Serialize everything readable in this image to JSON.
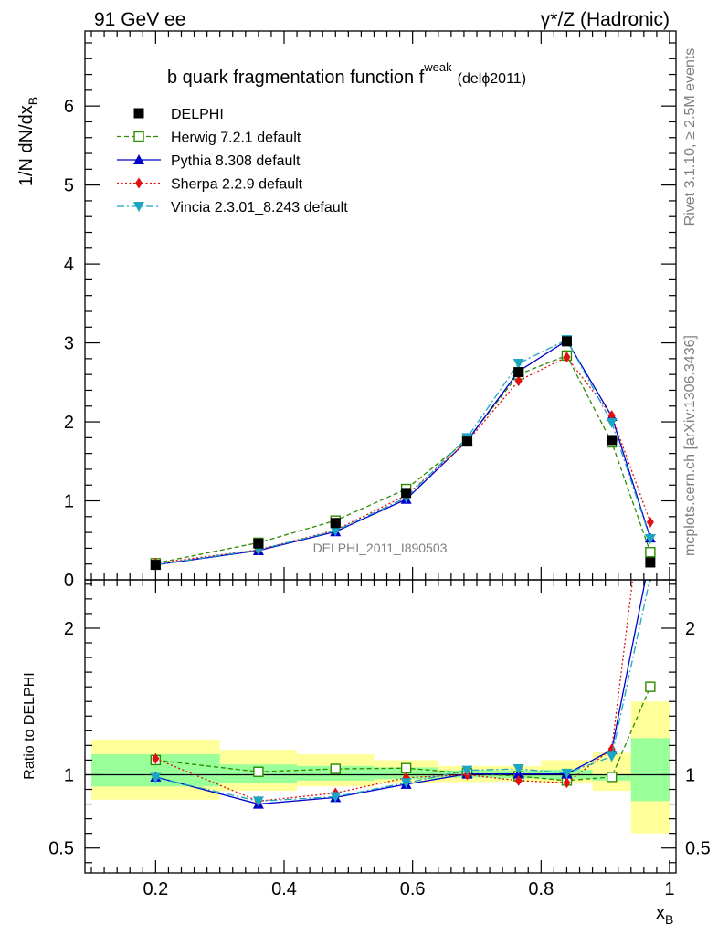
{
  "header": {
    "left": "91 GeV ee",
    "right": "γ*/Z (Hadronic)"
  },
  "side_labels": {
    "rivet": "Rivet 3.1.10, ≥ 2.5M events",
    "mcplots": "mcplots.cern.ch [arXiv:1306.3436]"
  },
  "chart_data": [
    {
      "type": "line",
      "title_main": "b quark fragmentation function f",
      "title_sup": "weak",
      "title_tag": "(delϕ2011)",
      "ylabel": "1/N dN/dx",
      "ylabel_sub": "B",
      "watermark": "DELPHI_2011_I890503",
      "xlim": [
        0.09,
        1.01
      ],
      "ylim": [
        0,
        6.95
      ],
      "yticks": [
        0,
        1,
        2,
        3,
        4,
        5,
        6
      ],
      "x": [
        0.2,
        0.36,
        0.48,
        0.59,
        0.685,
        0.765,
        0.84,
        0.91,
        0.97
      ],
      "data": {
        "name": "DELPHI",
        "values": [
          0.19,
          0.46,
          0.72,
          1.1,
          1.75,
          2.63,
          3.02,
          1.77,
          0.22
        ]
      },
      "legend": [
        {
          "key": "delphi",
          "label": "DELPHI"
        },
        {
          "key": "herwig",
          "label": "Herwig 7.2.1 default"
        },
        {
          "key": "pythia",
          "label": "Pythia 8.308 default"
        },
        {
          "key": "sherpa",
          "label": "Sherpa 2.2.9 default"
        },
        {
          "key": "vincia",
          "label": "Vincia 2.3.01_8.243 default"
        }
      ],
      "series": [
        {
          "key": "herwig",
          "name": "Herwig 7.2.1 default",
          "color": "#2e8b00",
          "values": [
            0.21,
            0.47,
            0.75,
            1.15,
            1.77,
            2.6,
            2.84,
            1.74,
            0.35
          ]
        },
        {
          "key": "pythia",
          "name": "Pythia 8.308 default",
          "color": "#0000cc",
          "values": [
            0.19,
            0.37,
            0.61,
            1.02,
            1.76,
            2.64,
            3.03,
            2.07,
            0.53
          ]
        },
        {
          "key": "sherpa",
          "name": "Sherpa 2.2.9 default",
          "color": "#e01010",
          "values": [
            0.21,
            0.38,
            0.63,
            1.07,
            1.75,
            2.52,
            2.82,
            2.08,
            0.73
          ]
        },
        {
          "key": "vincia",
          "name": "Vincia 2.3.01_8.243 default",
          "color": "#1ba5c0",
          "values": [
            0.19,
            0.38,
            0.62,
            1.04,
            1.8,
            2.74,
            3.04,
            1.99,
            0.52
          ]
        }
      ]
    },
    {
      "type": "line",
      "ylabel": "Ratio to DELPHI",
      "xlabel": "x",
      "xlabel_sub": "B",
      "xlim": [
        0.09,
        1.01
      ],
      "ylim": [
        0.33,
        2.33
      ],
      "yticks": [
        0.5,
        1,
        2
      ],
      "xticks": [
        0.2,
        0.4,
        0.6,
        0.8,
        1
      ],
      "x": [
        0.2,
        0.36,
        0.48,
        0.59,
        0.685,
        0.765,
        0.84,
        0.91,
        0.97
      ],
      "bins": [
        [
          0.1,
          0.3
        ],
        [
          0.3,
          0.42
        ],
        [
          0.42,
          0.54
        ],
        [
          0.54,
          0.64
        ],
        [
          0.64,
          0.73
        ],
        [
          0.73,
          0.8
        ],
        [
          0.8,
          0.88
        ],
        [
          0.88,
          0.94
        ],
        [
          0.94,
          1.0
        ]
      ],
      "band_inner": [
        [
          0.92,
          1.14
        ],
        [
          0.94,
          1.07
        ],
        [
          0.96,
          1.06
        ],
        [
          0.97,
          1.05
        ],
        [
          0.98,
          1.03
        ],
        [
          0.975,
          1.03
        ],
        [
          0.97,
          1.035
        ],
        [
          0.96,
          1.0
        ],
        [
          0.82,
          1.25
        ]
      ],
      "band_outer": [
        [
          0.83,
          1.24
        ],
        [
          0.89,
          1.17
        ],
        [
          0.92,
          1.14
        ],
        [
          0.94,
          1.1
        ],
        [
          0.95,
          1.06
        ],
        [
          0.955,
          1.06
        ],
        [
          0.94,
          1.1
        ],
        [
          0.89,
          1.15
        ],
        [
          0.6,
          1.5
        ]
      ],
      "series": [
        {
          "key": "herwig",
          "values": [
            1.1,
            1.02,
            1.04,
            1.045,
            1.01,
            0.99,
            0.96,
            0.985,
            1.6
          ]
        },
        {
          "key": "pythia",
          "values": [
            0.985,
            0.8,
            0.845,
            0.935,
            1.005,
            1.005,
            1.005,
            1.17,
            2.5
          ]
        },
        {
          "key": "sherpa",
          "values": [
            1.11,
            0.82,
            0.875,
            0.98,
            1.0,
            0.96,
            0.945,
            1.175,
            3.3
          ]
        },
        {
          "key": "vincia",
          "values": [
            0.98,
            0.82,
            0.85,
            0.945,
            1.03,
            1.04,
            1.01,
            1.125,
            2.35
          ]
        }
      ]
    }
  ]
}
